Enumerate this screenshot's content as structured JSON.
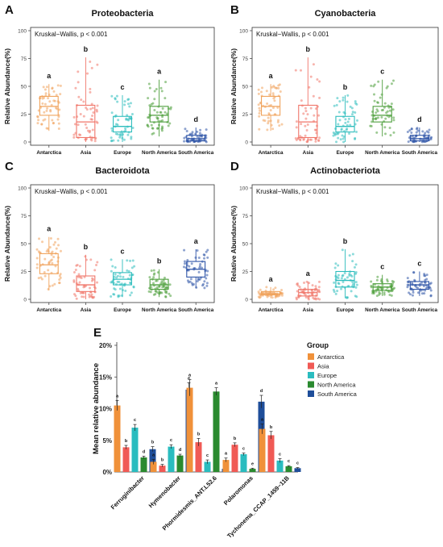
{
  "panel_labels": [
    "A",
    "B",
    "C",
    "D",
    "E"
  ],
  "chart_data": [
    {
      "type": "box",
      "panel": "A",
      "title": "Proteobacteria",
      "annotation": "Kruskal−Wallis, p < 0.001",
      "ylabel": "Relative Abundance(%)",
      "ylim": [
        0,
        100
      ],
      "yticks": [
        "0",
        "25",
        "50",
        "75",
        "100"
      ],
      "categories": [
        "Antarctica",
        "Asia",
        "Europe",
        "North America",
        "South America"
      ],
      "colors": [
        "#F0A35C",
        "#F0766A",
        "#2DBDBD",
        "#4C9E3B",
        "#2F55A8"
      ],
      "letters": [
        "a",
        "b",
        "c",
        "a",
        "d"
      ],
      "boxes": [
        {
          "q1": 24,
          "median": 32,
          "q3": 41,
          "low": 10,
          "high": 52
        },
        {
          "q1": 4,
          "median": 18,
          "q3": 33,
          "low": 0,
          "high": 76
        },
        {
          "q1": 9,
          "median": 14,
          "q3": 23,
          "low": 0,
          "high": 42
        },
        {
          "q1": 18,
          "median": 24,
          "q3": 32,
          "low": 5,
          "high": 56
        },
        {
          "q1": 1,
          "median": 3,
          "q3": 6,
          "low": 0,
          "high": 13
        }
      ]
    },
    {
      "type": "box",
      "panel": "B",
      "title": "Cyanobacteria",
      "annotation": "Kruskal−Wallis, p < 0.001",
      "ylabel": "Relative Abundance(%)",
      "ylim": [
        0,
        100
      ],
      "yticks": [
        "0",
        "25",
        "50",
        "75",
        "100"
      ],
      "categories": [
        "Antarctica",
        "Asia",
        "Europe",
        "North America",
        "South America"
      ],
      "colors": [
        "#F0A35C",
        "#F0766A",
        "#2DBDBD",
        "#4C9E3B",
        "#2F55A8"
      ],
      "letters": [
        "a",
        "b",
        "b",
        "c",
        "d"
      ],
      "boxes": [
        {
          "q1": 24,
          "median": 32,
          "q3": 41,
          "low": 10,
          "high": 52
        },
        {
          "q1": 4,
          "median": 18,
          "q3": 33,
          "low": 0,
          "high": 76
        },
        {
          "q1": 9,
          "median": 14,
          "q3": 23,
          "low": 0,
          "high": 42
        },
        {
          "q1": 18,
          "median": 24,
          "q3": 32,
          "low": 5,
          "high": 56
        },
        {
          "q1": 1,
          "median": 3,
          "q3": 6,
          "low": 0,
          "high": 13
        }
      ]
    },
    {
      "type": "box",
      "panel": "C",
      "title": "Bacteroidota",
      "annotation": "Kruskal−Wallis, p < 0.001",
      "ylabel": "Relative Abundance(%)",
      "ylim": [
        0,
        100
      ],
      "yticks": [
        "0",
        "25",
        "50",
        "75",
        "100"
      ],
      "categories": [
        "Antarctica",
        "Asia",
        "Europe",
        "North America",
        "South America"
      ],
      "colors": [
        "#F0A35C",
        "#F0766A",
        "#2DBDBD",
        "#4C9E3B",
        "#2F55A8"
      ],
      "letters": [
        "a",
        "b",
        "c",
        "b",
        "a"
      ],
      "boxes": [
        {
          "q1": 23,
          "median": 31,
          "q3": 41,
          "low": 8,
          "high": 56
        },
        {
          "q1": 7,
          "median": 13,
          "q3": 21,
          "low": 0,
          "high": 40
        },
        {
          "q1": 13,
          "median": 18,
          "q3": 24,
          "low": 2,
          "high": 36
        },
        {
          "q1": 9,
          "median": 13,
          "q3": 18,
          "low": 2,
          "high": 27
        },
        {
          "q1": 20,
          "median": 27,
          "q3": 34,
          "low": 10,
          "high": 45
        }
      ]
    },
    {
      "type": "box",
      "panel": "D",
      "title": "Actinobacteriota",
      "annotation": "Kruskal−Wallis, p < 0.001",
      "ylabel": "Relative Abundance(%)",
      "ylim": [
        0,
        100
      ],
      "yticks": [
        "0",
        "25",
        "50",
        "75",
        "100"
      ],
      "categories": [
        "Antarctica",
        "Asia",
        "Europe",
        "North America",
        "South America"
      ],
      "colors": [
        "#F0A35C",
        "#F0766A",
        "#2DBDBD",
        "#4C9E3B",
        "#2F55A8"
      ],
      "letters": [
        "a",
        "a",
        "b",
        "c",
        "c"
      ],
      "boxes": [
        {
          "q1": 4,
          "median": 5,
          "q3": 7,
          "low": 1,
          "high": 11
        },
        {
          "q1": 3,
          "median": 6,
          "q3": 9,
          "low": 0,
          "high": 16
        },
        {
          "q1": 11,
          "median": 17,
          "q3": 25,
          "low": 1,
          "high": 45
        },
        {
          "q1": 8,
          "median": 11,
          "q3": 14,
          "low": 3,
          "high": 22
        },
        {
          "q1": 9,
          "median": 13,
          "q3": 16,
          "low": 3,
          "high": 25
        }
      ]
    },
    {
      "type": "bar",
      "panel": "E",
      "ylabel": "Mean relative abundance",
      "ylim": [
        0,
        20
      ],
      "yticks": [
        "0%",
        "5%",
        "10%",
        "15%",
        "20%"
      ],
      "categories": [
        "Ferruginibacter",
        "Hymenobacter",
        "Phormidesmis_ANT.L52.6",
        "Polaromonas",
        "Tychonema_CCAP_1459−11B"
      ],
      "legend_title": "Group",
      "legend_position": "top-right",
      "series": [
        {
          "name": "Antarctica",
          "color": "#F0913A",
          "values": [
            10.5,
            1.6,
            13.3,
            1.9,
            6.8
          ],
          "errors": [
            0.8,
            0.4,
            1.3,
            0.3,
            0.8
          ],
          "letters": [
            "a",
            "a",
            "a",
            "a",
            "a"
          ]
        },
        {
          "name": "Asia",
          "color": "#F05A55",
          "values": [
            3.9,
            1.0,
            4.7,
            4.3,
            5.8
          ],
          "errors": [
            0.3,
            0.2,
            0.6,
            0.3,
            0.6
          ],
          "letters": [
            "b",
            "b",
            "b",
            "b",
            "b"
          ]
        },
        {
          "name": "Europe",
          "color": "#2ABCBF",
          "values": [
            7.0,
            4.0,
            1.6,
            2.8,
            1.8
          ],
          "errors": [
            0.5,
            0.3,
            0.3,
            0.2,
            0.3
          ],
          "letters": [
            "c",
            "c",
            "c",
            "c",
            "c"
          ]
        },
        {
          "name": "North America",
          "color": "#2A8A2F",
          "values": [
            2.3,
            2.6,
            12.7,
            0.5,
            0.9
          ],
          "errors": [
            0.2,
            0.2,
            0.6,
            0.1,
            0.1
          ],
          "letters": [
            "d",
            "d",
            "a",
            "e",
            "c"
          ]
        },
        {
          "name": "South America",
          "color": "#1F4E9A",
          "values": [
            3.6,
            13.0,
            0.5,
            11.1,
            0.6
          ],
          "errors": [
            0.4,
            1.1,
            0.1,
            1.0,
            0.1
          ],
          "letters": [
            "b",
            "e",
            "c",
            "d",
            "c"
          ]
        }
      ]
    }
  ]
}
